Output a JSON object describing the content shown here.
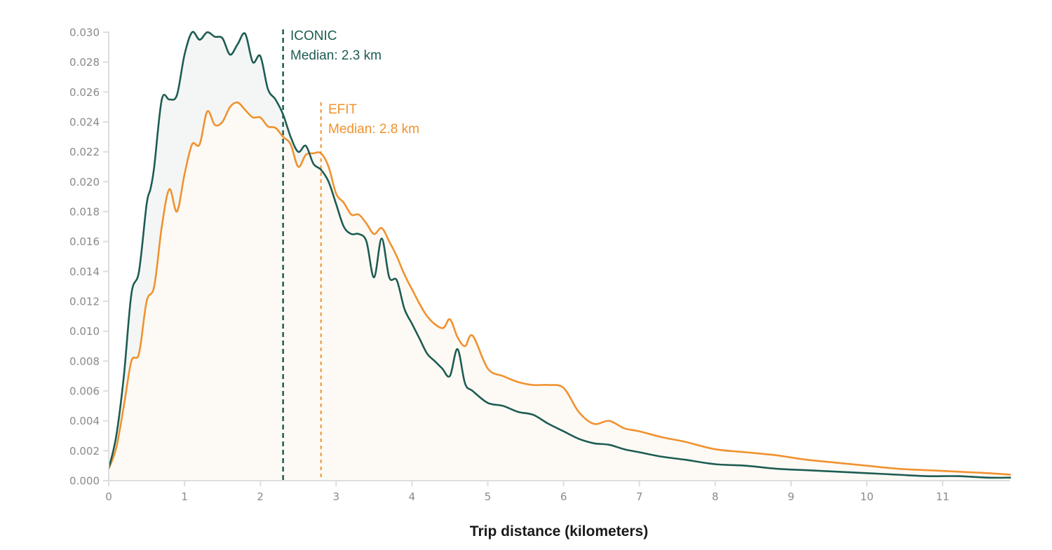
{
  "chart_data": {
    "type": "area",
    "title": "",
    "xlabel": "Trip distance (kilometers)",
    "ylabel": "",
    "xlim": [
      0,
      11.9
    ],
    "ylim": [
      0,
      0.03
    ],
    "grid": false,
    "legend": "none (direct annotations)",
    "x_ticks": [
      "0",
      "1",
      "2",
      "3",
      "4",
      "5",
      "6",
      "7",
      "8",
      "9",
      "10",
      "11"
    ],
    "y_ticks": [
      "0.000",
      "0.002",
      "0.004",
      "0.006",
      "0.008",
      "0.010",
      "0.012",
      "0.014",
      "0.016",
      "0.018",
      "0.020",
      "0.022",
      "0.024",
      "0.026",
      "0.028",
      "0.030"
    ],
    "series": [
      {
        "name": "ICONIC",
        "color": "#1d5c52",
        "fill": "#f4f6f5",
        "median": 2.3,
        "annotation": [
          "ICONIC",
          "Median: 2.3 km"
        ],
        "x": [
          0,
          0.1,
          0.2,
          0.3,
          0.4,
          0.5,
          0.55,
          0.6,
          0.7,
          0.8,
          0.9,
          1.0,
          1.1,
          1.2,
          1.3,
          1.4,
          1.5,
          1.6,
          1.7,
          1.8,
          1.9,
          2.0,
          2.1,
          2.2,
          2.3,
          2.4,
          2.5,
          2.6,
          2.7,
          2.8,
          2.9,
          3.0,
          3.1,
          3.2,
          3.3,
          3.4,
          3.5,
          3.6,
          3.7,
          3.8,
          3.9,
          4.0,
          4.1,
          4.2,
          4.3,
          4.4,
          4.5,
          4.6,
          4.7,
          4.8,
          5.0,
          5.2,
          5.4,
          5.6,
          5.8,
          6.0,
          6.2,
          6.4,
          6.6,
          6.8,
          7.0,
          7.3,
          7.6,
          8.0,
          8.4,
          8.8,
          9.2,
          9.6,
          10.0,
          10.4,
          10.8,
          11.2,
          11.6,
          11.9
        ],
        "values": [
          0.0008,
          0.003,
          0.007,
          0.0125,
          0.014,
          0.0185,
          0.0195,
          0.021,
          0.0255,
          0.0255,
          0.0258,
          0.0285,
          0.03,
          0.0295,
          0.03,
          0.0297,
          0.0296,
          0.0285,
          0.0292,
          0.0299,
          0.028,
          0.0284,
          0.0262,
          0.0255,
          0.0245,
          0.023,
          0.022,
          0.0224,
          0.0212,
          0.0208,
          0.02,
          0.0185,
          0.017,
          0.0165,
          0.0165,
          0.016,
          0.0136,
          0.0162,
          0.0136,
          0.0134,
          0.0115,
          0.0105,
          0.0095,
          0.0085,
          0.008,
          0.0075,
          0.007,
          0.0088,
          0.0065,
          0.006,
          0.0052,
          0.005,
          0.0046,
          0.0044,
          0.0038,
          0.0033,
          0.0028,
          0.0025,
          0.0024,
          0.0021,
          0.0019,
          0.0016,
          0.0014,
          0.0011,
          0.001,
          0.0008,
          0.0007,
          0.0006,
          0.0005,
          0.0004,
          0.0003,
          0.0003,
          0.0002,
          0.0002
        ]
      },
      {
        "name": "EFIT",
        "color": "#f0922e",
        "fill": "#fdfaf6",
        "median": 2.8,
        "annotation": [
          "EFIT",
          "Median: 2.8 km"
        ],
        "x": [
          0,
          0.1,
          0.2,
          0.3,
          0.4,
          0.5,
          0.6,
          0.7,
          0.8,
          0.9,
          1.0,
          1.1,
          1.2,
          1.3,
          1.4,
          1.5,
          1.6,
          1.7,
          1.8,
          1.9,
          2.0,
          2.1,
          2.2,
          2.3,
          2.4,
          2.5,
          2.6,
          2.7,
          2.8,
          2.9,
          3.0,
          3.1,
          3.2,
          3.3,
          3.4,
          3.5,
          3.6,
          3.7,
          3.8,
          3.9,
          4.0,
          4.2,
          4.4,
          4.5,
          4.6,
          4.7,
          4.8,
          5.0,
          5.2,
          5.4,
          5.6,
          5.8,
          6.0,
          6.2,
          6.4,
          6.6,
          6.8,
          7.0,
          7.3,
          7.6,
          8.0,
          8.4,
          8.8,
          9.2,
          9.6,
          10.0,
          10.4,
          10.8,
          11.2,
          11.6,
          11.9
        ],
        "values": [
          0.0008,
          0.0022,
          0.005,
          0.008,
          0.0085,
          0.012,
          0.013,
          0.017,
          0.0195,
          0.018,
          0.0205,
          0.0225,
          0.0225,
          0.0247,
          0.0238,
          0.024,
          0.025,
          0.0253,
          0.0248,
          0.0243,
          0.0243,
          0.0237,
          0.0236,
          0.023,
          0.0225,
          0.021,
          0.0218,
          0.0219,
          0.0219,
          0.021,
          0.0192,
          0.0186,
          0.0178,
          0.0178,
          0.0172,
          0.0165,
          0.0169,
          0.016,
          0.015,
          0.0138,
          0.0128,
          0.011,
          0.0102,
          0.0108,
          0.0096,
          0.009,
          0.0097,
          0.0075,
          0.007,
          0.0066,
          0.0064,
          0.0064,
          0.0062,
          0.0046,
          0.0038,
          0.004,
          0.0035,
          0.0033,
          0.0029,
          0.0026,
          0.0021,
          0.0019,
          0.0017,
          0.0014,
          0.0012,
          0.001,
          0.0008,
          0.0007,
          0.0006,
          0.0005,
          0.0004
        ]
      }
    ]
  },
  "labels": {
    "xlabel": "Trip distance (kilometers)",
    "iconic_name": "ICONIC",
    "iconic_median": "Median: 2.3 km",
    "efit_name": "EFIT",
    "efit_median": "Median: 2.8 km"
  }
}
